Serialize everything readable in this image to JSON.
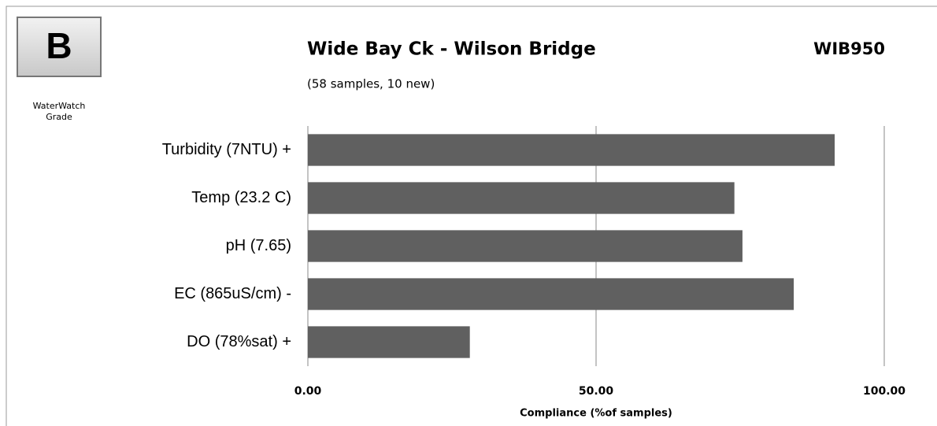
{
  "badge": {
    "grade": "B",
    "label_lines": [
      "WaterWatch",
      "Grade"
    ]
  },
  "chart_data": {
    "type": "bar",
    "orientation": "horizontal",
    "title": "Wide Bay Ck - Wilson Bridge",
    "subtitle": "(58 samples, 10 new)",
    "site_code": "WIB950",
    "categories": [
      "Turbidity (7NTU) +",
      "Temp (23.2 C)",
      "pH (7.65)",
      "EC (865uS/cm) -",
      "DO (78%sat) +"
    ],
    "values": [
      91.4,
      74.0,
      75.4,
      84.3,
      28.1
    ],
    "color": "#606060",
    "xlim": [
      0,
      100
    ],
    "xticks": [
      {
        "value": 0,
        "label": "0.00"
      },
      {
        "value": 50,
        "label": "50.00"
      },
      {
        "value": 100,
        "label": "100.00"
      }
    ],
    "xlabel": "Compliance (%of samples)",
    "grid": true
  }
}
